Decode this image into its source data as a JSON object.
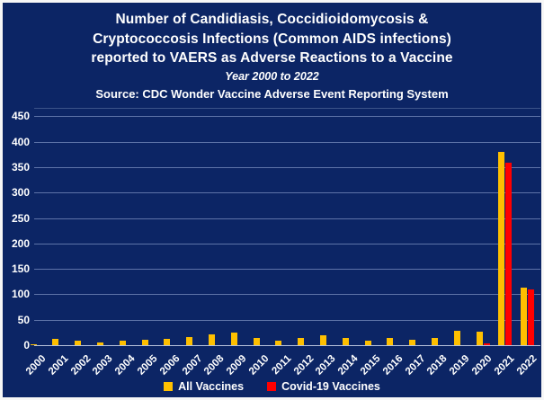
{
  "title": {
    "line1": "Number of Candidiasis, Coccidioidomycosis &",
    "line2": "Cryptococcosis Infections (Common AIDS infections)",
    "line3": "reported to VAERS as Adverse Reactions to a Vaccine",
    "subtitle": "Year 2000 to 2022",
    "source": "Source: CDC Wonder Vaccine Adverse Event Reporting System"
  },
  "chart_data": {
    "type": "bar",
    "title": "Number of Candidiasis, Coccidioidomycosis & Cryptococcosis Infections (Common AIDS infections) reported to VAERS as Adverse Reactions to a Vaccine",
    "subtitle": "Year 2000 to 2022",
    "source": "Source: CDC Wonder Vaccine Adverse Event Reporting System",
    "categories": [
      "2000",
      "2001",
      "2002",
      "2003",
      "2004",
      "2005",
      "2006",
      "2007",
      "2008",
      "2009",
      "2010",
      "2011",
      "2012",
      "2013",
      "2014",
      "2015",
      "2016",
      "2017",
      "2018",
      "2019",
      "2020",
      "2021",
      "2022"
    ],
    "series": [
      {
        "name": "All Vaccines",
        "color": "#FFC000",
        "values": [
          2,
          12,
          8,
          5,
          9,
          11,
          13,
          16,
          21,
          24,
          14,
          8,
          15,
          19,
          14,
          8,
          14,
          11,
          15,
          28,
          26,
          380,
          113
        ]
      },
      {
        "name": "Covid-19 Vaccines",
        "color": "#FF0000",
        "values": [
          0,
          0,
          0,
          0,
          0,
          0,
          0,
          0,
          0,
          0,
          0,
          0,
          0,
          0,
          0,
          0,
          0,
          0,
          0,
          0,
          3,
          358,
          110
        ]
      }
    ],
    "xlabel": "",
    "ylabel": "",
    "ylim": [
      0,
      450
    ],
    "ytick_step": 50,
    "grid": true,
    "legend_position": "bottom"
  },
  "colors": {
    "background": "#0C2565",
    "text": "#FFFFFF",
    "gridline": "#5E73A8",
    "baseline": "#B7C2DC",
    "all_vaccines": "#FFC000",
    "covid_vaccines": "#FF0000"
  }
}
